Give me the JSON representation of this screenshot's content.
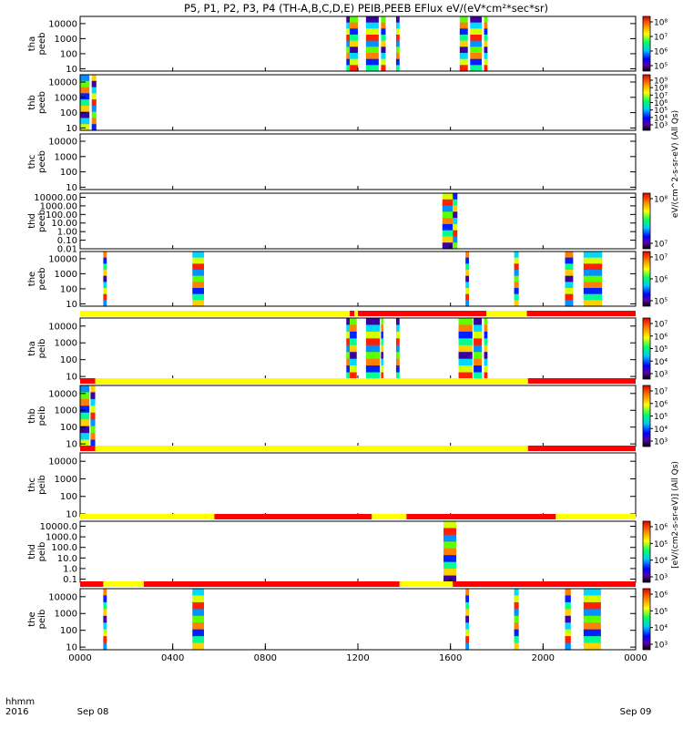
{
  "title": "P5, P1, P2, P3, P4 (TH-A,B,C,D,E) PEIB,PEEB EFlux eV/(eV*cm²*sec*sr)",
  "x_axis": {
    "row_label": "hhmm",
    "year_label": "2016",
    "ticks": [
      "0000",
      "0400",
      "0800",
      "1200",
      "1600",
      "2000",
      "0000"
    ],
    "tick_hours": [
      0,
      4,
      8,
      12,
      16,
      20,
      24
    ],
    "date_start": "Sep 08",
    "date_end": "Sep 09"
  },
  "colorbar_units": {
    "electron": "eV/(cm^2-s-sr-eV) (All Qs)",
    "ion": "[eV/(cm2-s-sr-eV)] (All Qs)"
  },
  "chart_data": [
    {
      "type": "heatmap",
      "probe": "tha",
      "product": "peeb",
      "ylabel": [
        "tha",
        "peeb"
      ],
      "ytick_labels": [
        "10000",
        "1000",
        "100",
        "10"
      ],
      "ylim": [
        7,
        30000
      ],
      "yscale": "log",
      "colorbar_ticks": [
        "10⁸",
        "10⁷",
        "10⁶",
        "10⁵"
      ],
      "coverage_hours": [
        [
          11.5,
          11.65
        ],
        [
          11.65,
          12.0
        ],
        [
          12.35,
          12.9
        ],
        [
          13.0,
          13.2
        ],
        [
          13.65,
          13.8
        ],
        [
          16.4,
          16.75
        ],
        [
          16.85,
          17.35
        ],
        [
          17.45,
          17.6
        ]
      ]
    },
    {
      "type": "heatmap",
      "probe": "thb",
      "product": "peeb",
      "ylabel": [
        "thb",
        "peeb"
      ],
      "ytick_labels": [
        "10000",
        "1000",
        "100",
        "10"
      ],
      "ylim": [
        7,
        30000
      ],
      "yscale": "log",
      "colorbar_ticks": [
        "10⁹",
        "10⁸",
        "10⁷",
        "10⁶",
        "10⁵",
        "10⁴",
        "10³"
      ],
      "coverage_hours": [
        [
          0.0,
          0.4
        ],
        [
          0.5,
          0.7
        ]
      ]
    },
    {
      "type": "heatmap",
      "probe": "thc",
      "product": "peeb",
      "ylabel": [
        "thc",
        "peeb"
      ],
      "ytick_labels": [
        "10000",
        "1000",
        "100",
        "10"
      ],
      "ylim": [
        7,
        30000
      ],
      "yscale": "log",
      "colorbar_ticks": [],
      "coverage_hours": []
    },
    {
      "type": "heatmap",
      "probe": "thd",
      "product": "peeb",
      "ylabel": [
        "thd",
        "peeb"
      ],
      "ytick_labels": [
        "10000.00",
        "1000.00",
        "100.00",
        "10.00",
        "1.00",
        "0.10",
        "0.01"
      ],
      "ylim": [
        0.01,
        30000
      ],
      "yscale": "log",
      "colorbar_ticks": [
        "10⁸",
        "10⁷"
      ],
      "coverage_hours": [
        [
          15.65,
          16.1
        ],
        [
          16.1,
          16.3
        ]
      ]
    },
    {
      "type": "heatmap",
      "probe": "the",
      "product": "peeb",
      "ylabel": [
        "the",
        "peeb"
      ],
      "ytick_labels": [
        "10000",
        "1000",
        "100",
        "10"
      ],
      "ylim": [
        7,
        30000
      ],
      "yscale": "log",
      "colorbar_ticks": [
        "10⁷",
        "10⁶",
        "10⁵"
      ],
      "coverage_hours": [
        [
          1.0,
          1.15
        ],
        [
          4.85,
          5.35
        ],
        [
          16.65,
          16.8
        ],
        [
          18.75,
          18.95
        ],
        [
          20.95,
          21.3
        ],
        [
          21.75,
          22.55
        ]
      ]
    },
    {
      "type": "heatmap",
      "probe": "tha",
      "product": "peib",
      "ylabel": [
        "tha",
        "peib"
      ],
      "ytick_labels": [
        "10000",
        "1000",
        "100",
        "10"
      ],
      "ylim": [
        7,
        30000
      ],
      "yscale": "log",
      "colorbar_ticks": [
        "10⁷",
        "10⁶",
        "10⁵",
        "10⁴",
        "10³"
      ],
      "mode_bar": [
        [
          "yellow",
          0,
          11.65
        ],
        [
          "red",
          11.65,
          11.85
        ],
        [
          "yellow",
          11.85,
          12.0
        ],
        [
          "red",
          12.0,
          17.55
        ],
        [
          "yellow",
          17.55,
          19.3
        ],
        [
          "red",
          19.3,
          24
        ]
      ],
      "coverage_hours": [
        [
          11.5,
          11.65
        ],
        [
          11.65,
          11.95
        ],
        [
          12.35,
          12.95
        ],
        [
          13.0,
          13.1
        ],
        [
          13.65,
          13.8
        ],
        [
          16.35,
          16.95
        ],
        [
          17.0,
          17.35
        ],
        [
          17.45,
          17.6
        ]
      ]
    },
    {
      "type": "heatmap",
      "probe": "thb",
      "product": "peib",
      "ylabel": [
        "thb",
        "peib"
      ],
      "ytick_labels": [
        "10000",
        "1000",
        "100",
        "10"
      ],
      "ylim": [
        7,
        30000
      ],
      "yscale": "log",
      "colorbar_ticks": [
        "10⁷",
        "10⁶",
        "10⁵",
        "10⁴",
        "10³"
      ],
      "mode_bar": [
        [
          "red",
          0,
          0.65
        ],
        [
          "yellow",
          0.65,
          19.35
        ],
        [
          "red",
          19.35,
          24
        ]
      ],
      "coverage_hours": [
        [
          0.0,
          0.4
        ],
        [
          0.45,
          0.65
        ]
      ]
    },
    {
      "type": "heatmap",
      "probe": "thc",
      "product": "peib",
      "ylabel": [
        "thc",
        "peib"
      ],
      "ytick_labels": [
        "10000",
        "1000",
        "100",
        "10"
      ],
      "ylim": [
        7,
        30000
      ],
      "yscale": "log",
      "colorbar_ticks": [],
      "mode_bar": [
        [
          "red",
          0,
          0.65
        ],
        [
          "yellow",
          0.65,
          19.35
        ],
        [
          "red",
          19.35,
          24
        ]
      ],
      "coverage_hours": []
    },
    {
      "type": "heatmap",
      "probe": "thd",
      "product": "peib",
      "ylabel": [
        "thd",
        "peib"
      ],
      "ytick_labels": [
        "10000.0",
        "1000.0",
        "100.0",
        "10.0",
        "1.0",
        "0.1"
      ],
      "ylim": [
        0.05,
        30000
      ],
      "yscale": "log",
      "colorbar_ticks": [
        "10⁶",
        "10⁵",
        "10⁴",
        "10³"
      ],
      "mode_bar": [
        [
          "yellow",
          0,
          5.8
        ],
        [
          "red",
          5.8,
          12.6
        ],
        [
          "yellow",
          12.6,
          14.1
        ],
        [
          "red",
          14.1,
          20.55
        ],
        [
          "yellow",
          20.55,
          24
        ]
      ],
      "coverage_hours": [
        [
          15.7,
          16.25
        ]
      ]
    },
    {
      "type": "heatmap",
      "probe": "the",
      "product": "peib",
      "ylabel": [
        "the",
        "peib"
      ],
      "ytick_labels": [
        "10000",
        "1000",
        "100",
        "10"
      ],
      "ylim": [
        7,
        30000
      ],
      "yscale": "log",
      "colorbar_ticks": [
        "10⁶",
        "10⁵",
        "10⁴",
        "10³"
      ],
      "mode_bar": [
        [
          "red",
          0,
          1.0
        ],
        [
          "yellow",
          1.0,
          2.75
        ],
        [
          "red",
          2.75,
          13.8
        ],
        [
          "yellow",
          13.8,
          16.1
        ],
        [
          "red",
          16.1,
          24
        ]
      ],
      "coverage_hours": [
        [
          1.0,
          1.15
        ],
        [
          4.85,
          5.35
        ],
        [
          16.65,
          16.8
        ],
        [
          18.75,
          18.95
        ],
        [
          20.95,
          21.2
        ],
        [
          21.75,
          22.5
        ]
      ]
    }
  ]
}
